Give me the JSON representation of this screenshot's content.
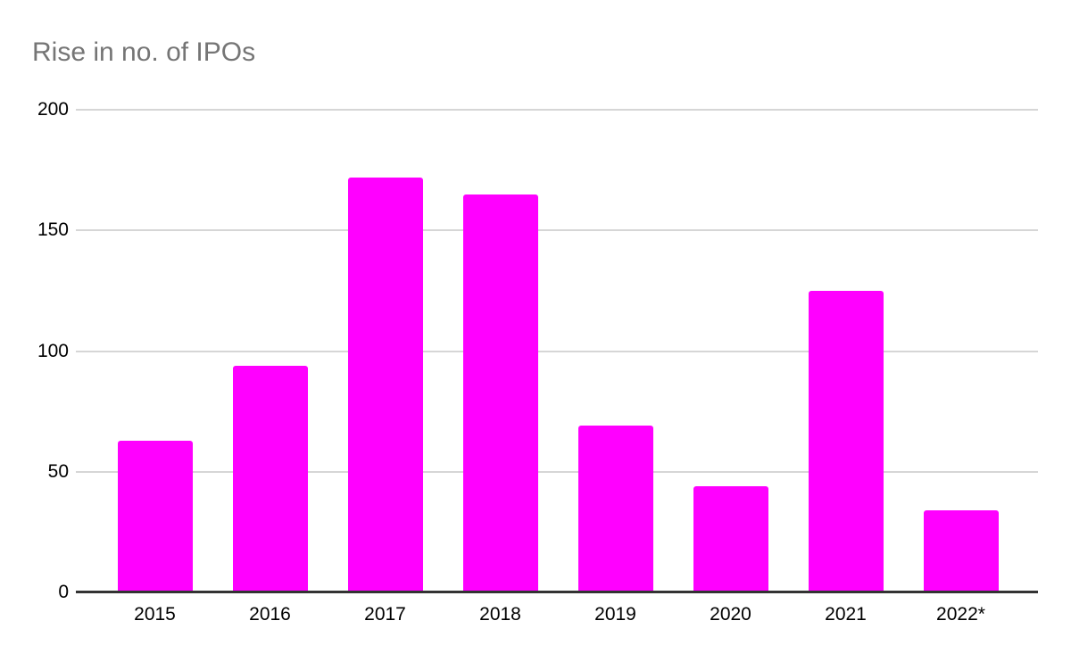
{
  "chart_data": {
    "type": "bar",
    "title": "Rise in no. of IPOs",
    "categories": [
      "2015",
      "2016",
      "2017",
      "2018",
      "2019",
      "2020",
      "2021",
      "2022*"
    ],
    "values": [
      63,
      94,
      172,
      165,
      69,
      44,
      125,
      34
    ],
    "xlabel": "",
    "ylabel": "",
    "ylim": [
      0,
      200
    ],
    "yticks": [
      0,
      50,
      100,
      150,
      200
    ],
    "grid": true,
    "legend": false,
    "layout": {
      "legend_position": "none",
      "gridlines_horizontal_only": true,
      "bar_corner_radius_top": true
    },
    "colors": {
      "bar_color": "#ff00ff",
      "title_color": "#757575",
      "gridline_color": "#d6d6d6",
      "axis_color": "#333333",
      "tick_label_color": "#000000",
      "background_color": "#ffffff"
    }
  }
}
